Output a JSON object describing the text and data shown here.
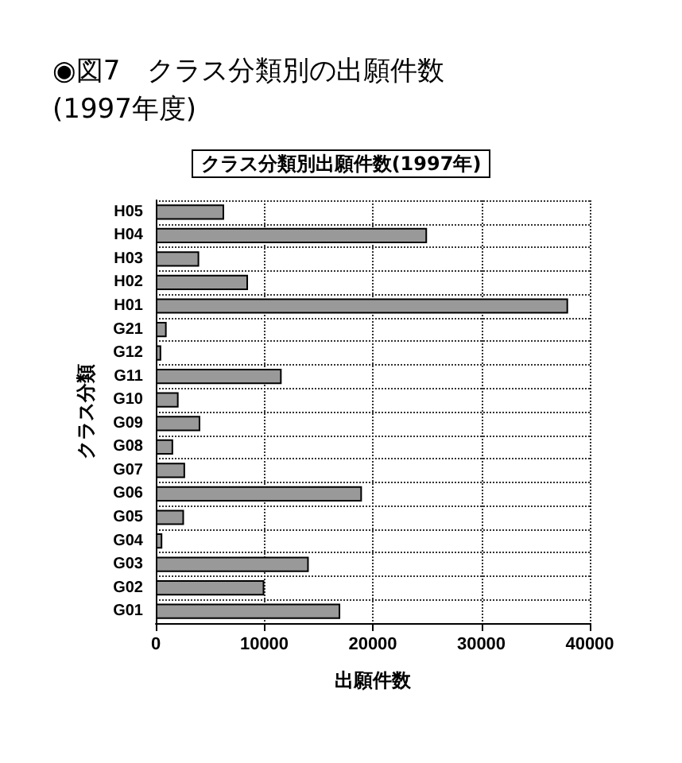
{
  "chart_data": {
    "type": "bar",
    "orientation": "horizontal",
    "title": "◉図7　クラス分類別の出願件数 (1997年度)",
    "subtitle": "クラス分類別出願件数(1997年)",
    "xlabel": "出願件数",
    "ylabel": "クラス分類",
    "categories": [
      "H05",
      "H04",
      "H03",
      "H02",
      "H01",
      "G21",
      "G12",
      "G11",
      "G10",
      "G09",
      "G08",
      "G07",
      "G06",
      "G05",
      "G04",
      "G03",
      "G02",
      "G01"
    ],
    "values": [
      6300,
      25000,
      4000,
      8500,
      38000,
      1000,
      500,
      11600,
      2100,
      4100,
      1600,
      2700,
      19000,
      2600,
      600,
      14100,
      10000,
      17000
    ],
    "color": "#999999",
    "xlim": [
      0,
      40000
    ],
    "xticks": [
      0,
      10000,
      20000,
      30000,
      40000
    ],
    "grid": true
  }
}
